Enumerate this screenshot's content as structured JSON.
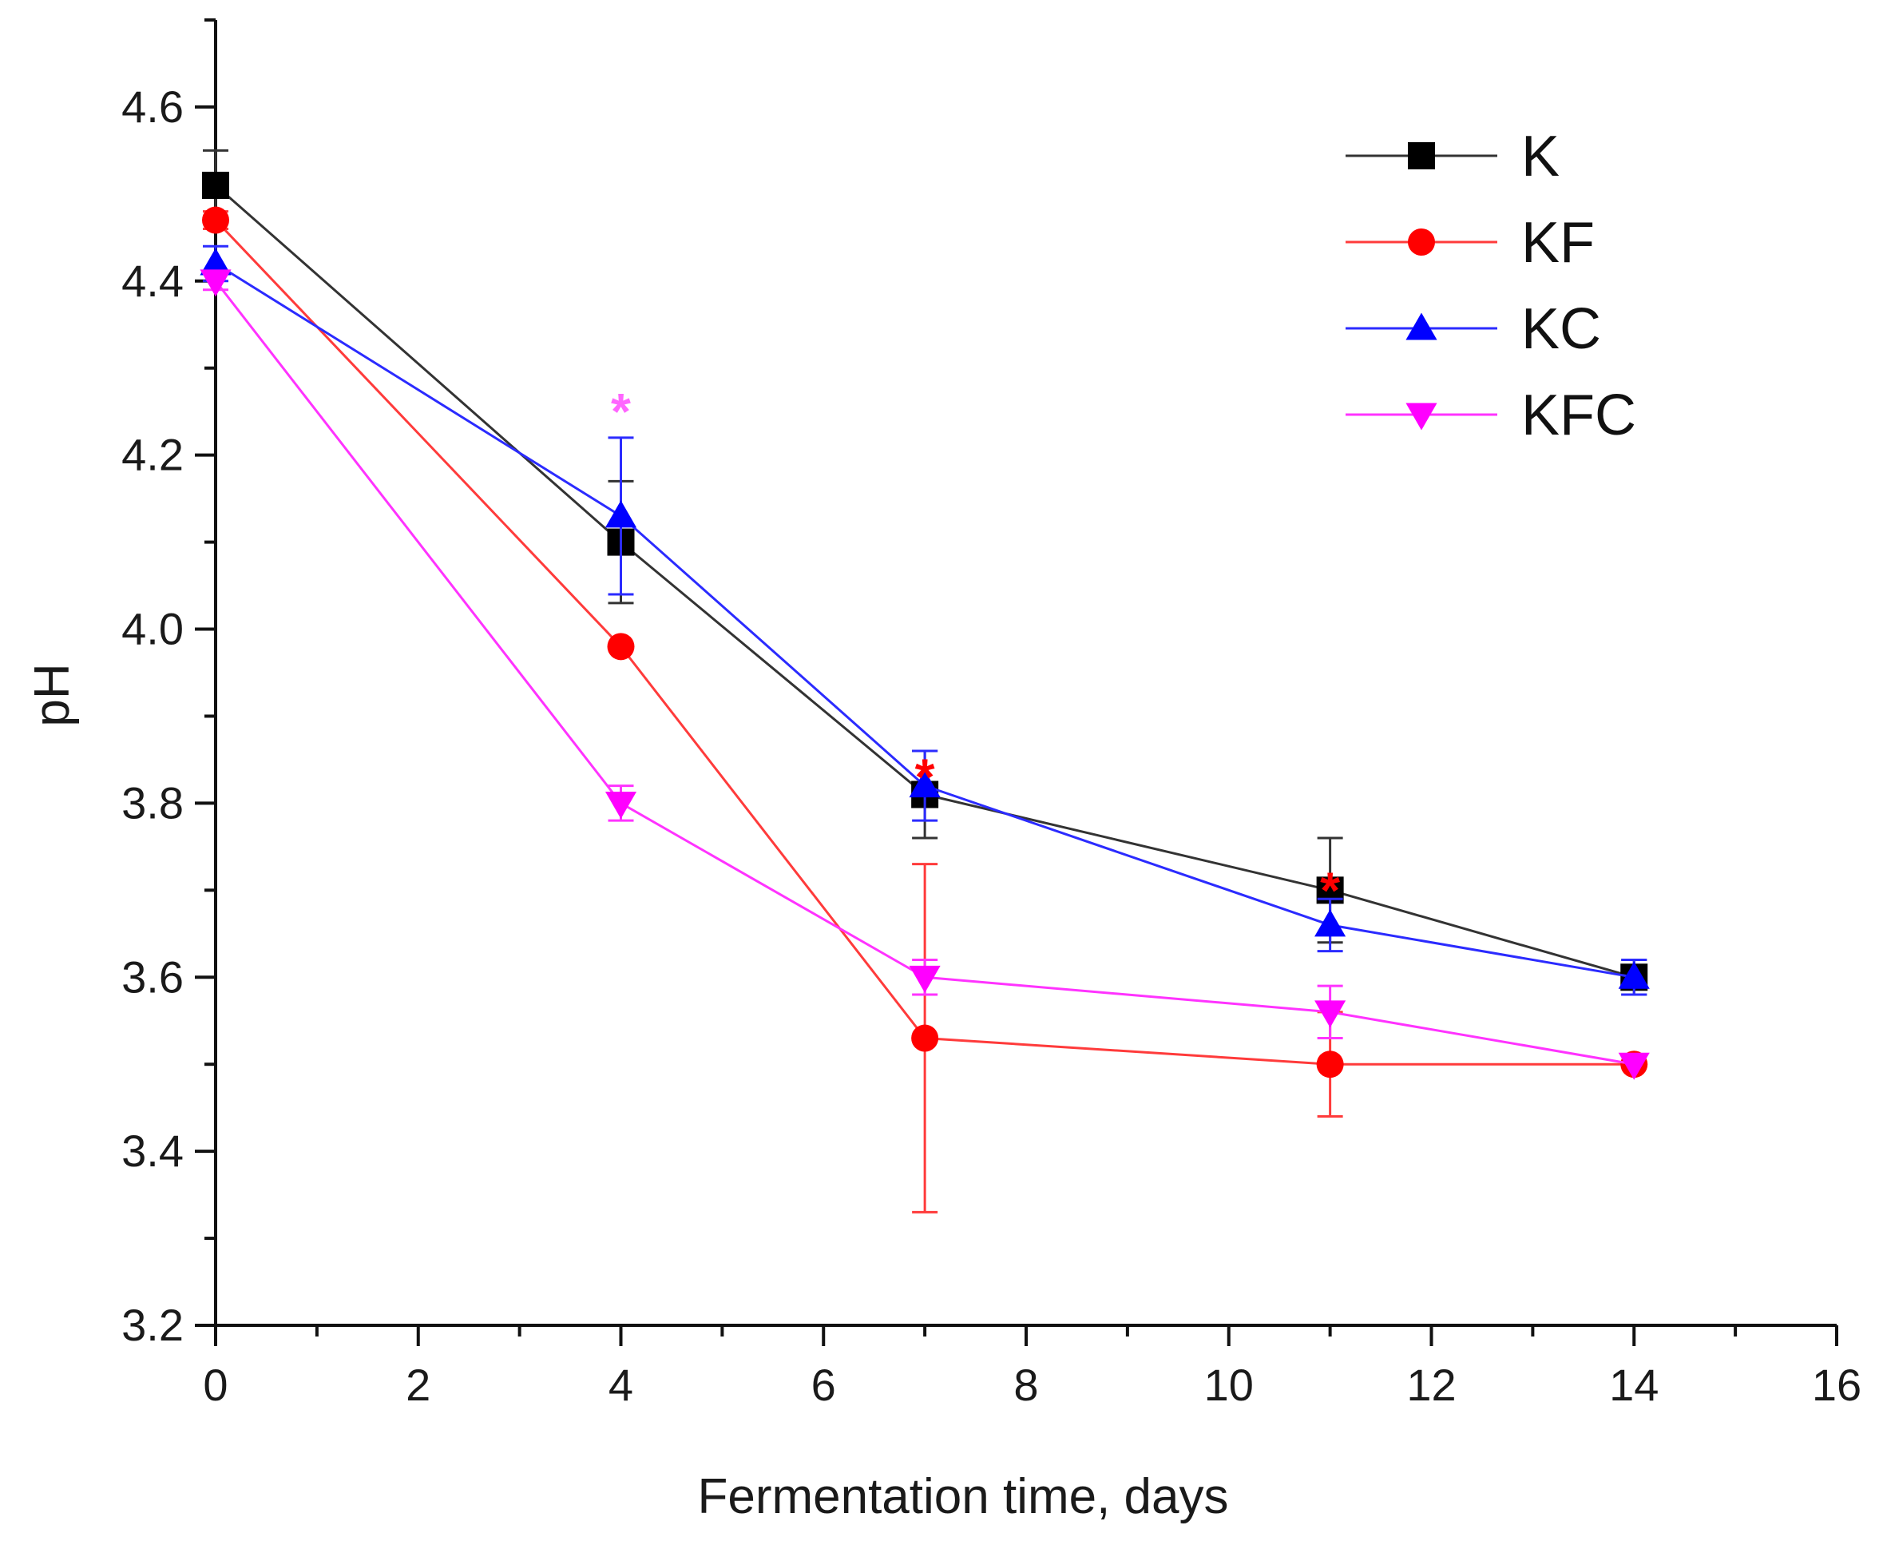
{
  "chart_data": {
    "type": "line",
    "title": "",
    "xlabel": "Fermentation time, days",
    "ylabel": "pH",
    "xlim": [
      0,
      16
    ],
    "ylim": [
      3.2,
      4.7
    ],
    "x_ticks": [
      0,
      2,
      4,
      6,
      8,
      10,
      12,
      14,
      16
    ],
    "y_ticks": [
      3.2,
      3.4,
      3.6,
      3.8,
      4.0,
      4.2,
      4.4,
      4.6
    ],
    "x_tick_labels": [
      "0",
      "2",
      "4",
      "6",
      "8",
      "10",
      "12",
      "14",
      "16"
    ],
    "y_tick_labels": [
      "3.2",
      "3.4",
      "3.6",
      "3.8",
      "4.0",
      "4.2",
      "4.4",
      "4.6"
    ],
    "x": [
      0,
      4,
      7,
      11,
      14
    ],
    "series": [
      {
        "name": "K",
        "color": "#000000",
        "line_color": "#333333",
        "marker": "square",
        "values": [
          4.51,
          4.1,
          3.81,
          3.7,
          3.6
        ],
        "errors": [
          0.04,
          0.07,
          0.05,
          0.06,
          0.02
        ]
      },
      {
        "name": "KF",
        "color": "#ff0000",
        "line_color": "#ff3b3b",
        "marker": "circle",
        "values": [
          4.47,
          3.98,
          3.53,
          3.5,
          3.5
        ],
        "errors": [
          0.01,
          0.0,
          0.2,
          0.06,
          0.0
        ]
      },
      {
        "name": "KC",
        "color": "#0000ff",
        "line_color": "#2b2bff",
        "marker": "triangle-up",
        "values": [
          4.42,
          4.13,
          3.82,
          3.66,
          3.6
        ],
        "errors": [
          0.02,
          0.09,
          0.04,
          0.03,
          0.02
        ]
      },
      {
        "name": "KFC",
        "color": "#ff00ff",
        "line_color": "#ff33ff",
        "marker": "triangle-down",
        "values": [
          4.4,
          3.8,
          3.6,
          3.56,
          3.5
        ],
        "errors": [
          0.01,
          0.02,
          0.02,
          0.03,
          0.0
        ]
      }
    ],
    "annotations": [
      {
        "text": "*",
        "x": 4,
        "y": 4.25,
        "color": "#ff66ff"
      },
      {
        "text": "*",
        "x": 7,
        "y": 3.83,
        "color": "#ff0000"
      },
      {
        "text": "*",
        "x": 11,
        "y": 3.7,
        "color": "#ff0000"
      }
    ],
    "legend_position": "top-right",
    "grid": false
  }
}
